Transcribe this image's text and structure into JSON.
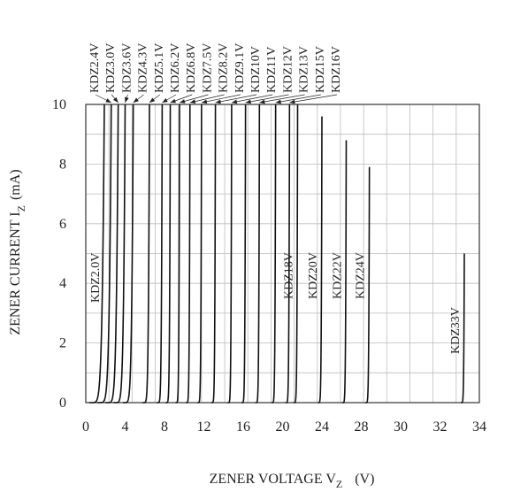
{
  "chart_data": {
    "type": "line",
    "xlabel": "ZENER VOLTAGE V",
    "xlabel_sub": "Z",
    "xlabel_unit": "(V)",
    "ylabel": "ZENER CURRENT  I",
    "ylabel_sub": "Z",
    "ylabel_unit": "(mA)",
    "xlim": [
      0,
      34
    ],
    "ylim": [
      0,
      10
    ],
    "x_ticks": [
      "0",
      "4",
      "8",
      "12",
      "16",
      "20",
      "24",
      "28",
      "30",
      "32",
      "34"
    ],
    "y_ticks": [
      "0",
      "2",
      "4",
      "6",
      "8",
      "10"
    ],
    "grid": true,
    "series": [
      {
        "name": "KDZ2.0V",
        "vz": 1.6,
        "knee": 1.3,
        "imax": 10,
        "label_pos": "inside"
      },
      {
        "name": "KDZ2.4V",
        "vz": 2.2,
        "knee": 1.2,
        "imax": 10,
        "label_pos": "top"
      },
      {
        "name": "KDZ3.0V",
        "vz": 2.8,
        "knee": 1.1,
        "imax": 10,
        "label_pos": "top"
      },
      {
        "name": "KDZ3.6V",
        "vz": 3.4,
        "knee": 1.0,
        "imax": 10,
        "label_pos": "top"
      },
      {
        "name": "KDZ4.3V",
        "vz": 4.1,
        "knee": 0.9,
        "imax": 10,
        "label_pos": "top"
      },
      {
        "name": "KDZ5.1V",
        "vz": 5.5,
        "knee": 0.6,
        "imax": 10,
        "label_pos": "top"
      },
      {
        "name": "KDZ6.2V",
        "vz": 6.6,
        "knee": 0.45,
        "imax": 10,
        "label_pos": "top"
      },
      {
        "name": "KDZ6.8V",
        "vz": 7.3,
        "knee": 0.4,
        "imax": 10,
        "label_pos": "top"
      },
      {
        "name": "KDZ7.5V",
        "vz": 8.1,
        "knee": 0.35,
        "imax": 10,
        "label_pos": "top"
      },
      {
        "name": "KDZ8.2V",
        "vz": 9.0,
        "knee": 0.35,
        "imax": 10,
        "label_pos": "top"
      },
      {
        "name": "KDZ9.1V",
        "vz": 10.0,
        "knee": 0.35,
        "imax": 10,
        "label_pos": "top"
      },
      {
        "name": "KDZ10V",
        "vz": 11.2,
        "knee": 0.35,
        "imax": 10,
        "label_pos": "top"
      },
      {
        "name": "KDZ11V",
        "vz": 12.6,
        "knee": 0.35,
        "imax": 10,
        "label_pos": "top"
      },
      {
        "name": "KDZ12V",
        "vz": 13.8,
        "knee": 0.35,
        "imax": 10,
        "label_pos": "top"
      },
      {
        "name": "KDZ13V",
        "vz": 15.0,
        "knee": 0.35,
        "imax": 10,
        "label_pos": "top"
      },
      {
        "name": "KDZ15V",
        "vz": 16.4,
        "knee": 0.35,
        "imax": 10,
        "label_pos": "top"
      },
      {
        "name": "KDZ16V",
        "vz": 17.6,
        "knee": 0.35,
        "imax": 10,
        "label_pos": "top"
      },
      {
        "name": "KDZ18V",
        "vz": 18.3,
        "knee": 0.35,
        "imax": 10,
        "label_pos": "inside"
      },
      {
        "name": "KDZ20V",
        "vz": 20.4,
        "knee": 0.35,
        "imax": 9.6,
        "label_pos": "inside"
      },
      {
        "name": "KDZ22V",
        "vz": 22.5,
        "knee": 0.35,
        "imax": 8.8,
        "label_pos": "inside"
      },
      {
        "name": "KDZ24V",
        "vz": 24.5,
        "knee": 0.35,
        "imax": 7.9,
        "label_pos": "inside"
      },
      {
        "name": "KDZ33V",
        "vz": 32.7,
        "knee": 0.3,
        "imax": 5.0,
        "label_pos": "inside"
      }
    ]
  }
}
